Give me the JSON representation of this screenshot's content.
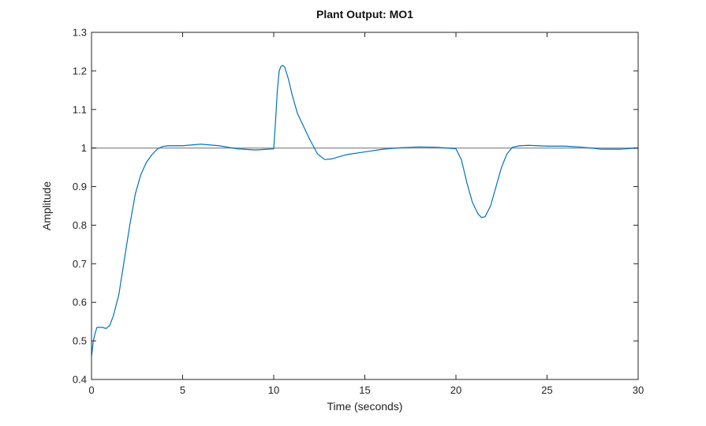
{
  "chart_data": {
    "type": "line",
    "title": "Plant Output: MO1",
    "xlabel": "Time (seconds)",
    "ylabel": "Amplitude",
    "xlim": [
      0,
      30
    ],
    "ylim": [
      0.4,
      1.3
    ],
    "xticks": [
      0,
      5,
      10,
      15,
      20,
      25,
      30
    ],
    "yticks": [
      0.4,
      0.5,
      0.6,
      0.7,
      0.8,
      0.9,
      1,
      1.1,
      1.2,
      1.3
    ],
    "grid": false,
    "colors": {
      "output": "#0072bd",
      "reference": "#999999",
      "axes": "#262626"
    },
    "series": [
      {
        "role": "output",
        "x": [
          0,
          0.1,
          0.2,
          0.3,
          0.4,
          0.6,
          0.8,
          1.0,
          1.2,
          1.5,
          1.8,
          2.1,
          2.4,
          2.7,
          3.0,
          3.3,
          3.6,
          3.9,
          4.2,
          4.5,
          5.0,
          6.0,
          7.0,
          8.0,
          9.0,
          10.0,
          10.1,
          10.2,
          10.3,
          10.4,
          10.5,
          10.6,
          10.8,
          11.0,
          11.3,
          11.6,
          12.0,
          12.4,
          12.8,
          13.2,
          14.0,
          15.0,
          16.0,
          17.0,
          18.0,
          19.0,
          20.0,
          20.3,
          20.6,
          20.9,
          21.2,
          21.4,
          21.6,
          21.9,
          22.2,
          22.5,
          22.8,
          23.1,
          23.5,
          24.0,
          25.0,
          26.0,
          27.0,
          28.0,
          29.0,
          30.0
        ],
        "y": [
          0.46,
          0.5,
          0.52,
          0.535,
          0.535,
          0.535,
          0.532,
          0.54,
          0.565,
          0.62,
          0.71,
          0.8,
          0.88,
          0.93,
          0.962,
          0.982,
          0.997,
          1.004,
          1.006,
          1.006,
          1.006,
          1.01,
          1.006,
          0.998,
          0.995,
          0.998,
          1.07,
          1.15,
          1.2,
          1.212,
          1.214,
          1.21,
          1.18,
          1.14,
          1.09,
          1.06,
          1.02,
          0.985,
          0.97,
          0.972,
          0.983,
          0.99,
          0.997,
          1.001,
          1.003,
          1.002,
          0.998,
          0.97,
          0.91,
          0.86,
          0.83,
          0.82,
          0.822,
          0.85,
          0.9,
          0.95,
          0.985,
          1.002,
          1.006,
          1.007,
          1.005,
          1.005,
          1.002,
          0.997,
          0.997,
          1.0
        ]
      },
      {
        "role": "reference",
        "x": [
          0,
          30
        ],
        "y": [
          1,
          1
        ]
      }
    ]
  }
}
